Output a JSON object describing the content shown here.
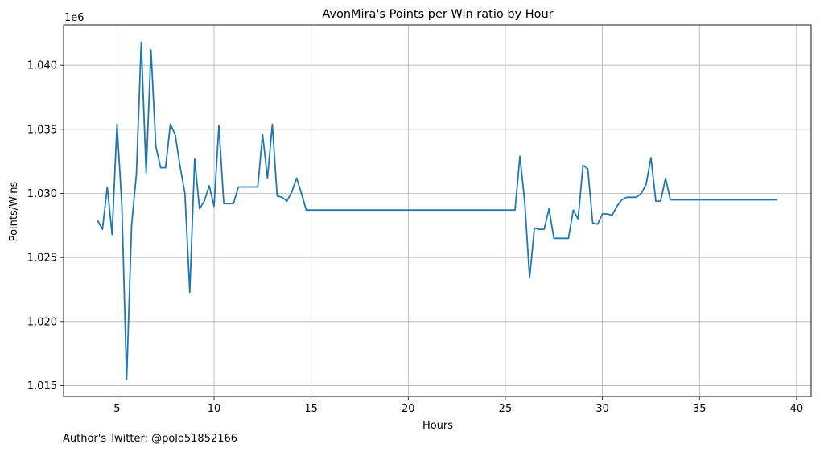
{
  "chart_data": {
    "type": "line",
    "title": "AvonMira's Points per Win ratio by Hour",
    "xlabel": "Hours",
    "ylabel": "Points/Wins",
    "y_offset_label": "1e6",
    "xlim": [
      2.25,
      40.75
    ],
    "ylim": [
      1.01415,
      1.04315
    ],
    "xticks": [
      5,
      10,
      15,
      20,
      25,
      30,
      35,
      40
    ],
    "xtick_labels": [
      "5",
      "10",
      "15",
      "20",
      "25",
      "30",
      "35",
      "40"
    ],
    "yticks": [
      1.015,
      1.02,
      1.025,
      1.03,
      1.035,
      1.04
    ],
    "ytick_labels": [
      "1.015",
      "1.020",
      "1.025",
      "1.030",
      "1.035",
      "1.040"
    ],
    "grid": true,
    "color": "#1f77b4",
    "series": [
      {
        "x": [
          4.0,
          4.25,
          4.5,
          4.75,
          5.0,
          5.25,
          5.5,
          5.75,
          6.0,
          6.25,
          6.5,
          6.75,
          7.0,
          7.25,
          7.5,
          7.75,
          8.0,
          8.25,
          8.5,
          8.75,
          9.0,
          9.25,
          9.5,
          9.75,
          10.0,
          10.25,
          10.5,
          10.75,
          11.0,
          11.25,
          11.5,
          11.75,
          12.0,
          12.25,
          12.5,
          12.75,
          13.0,
          13.25,
          13.5,
          13.75,
          14.0,
          14.25,
          14.5,
          14.75,
          25.5,
          25.75,
          26.0,
          26.25,
          26.5,
          26.75,
          27.0,
          27.25,
          27.5,
          27.75,
          28.0,
          28.25,
          28.5,
          28.75,
          29.0,
          29.25,
          29.5,
          29.75,
          30.0,
          30.25,
          30.5,
          30.75,
          31.0,
          31.25,
          31.5,
          31.75,
          32.0,
          32.25,
          32.5,
          32.75,
          33.0,
          33.25,
          33.5,
          39.0
        ],
        "y": [
          1.0279,
          1.0272,
          1.0305,
          1.0268,
          1.0354,
          1.0291,
          1.0155,
          1.0275,
          1.0315,
          1.0418,
          1.0316,
          1.0412,
          1.0337,
          1.032,
          1.032,
          1.0354,
          1.0346,
          1.0321,
          1.03,
          1.0223,
          1.0327,
          1.0288,
          1.0294,
          1.0306,
          1.029,
          1.0353,
          1.0292,
          1.0292,
          1.0292,
          1.0305,
          1.0305,
          1.0305,
          1.0305,
          1.0305,
          1.0346,
          1.0312,
          1.0354,
          1.0298,
          1.0297,
          1.0294,
          1.0301,
          1.0312,
          1.03,
          1.0287,
          1.0287,
          1.0329,
          1.0293,
          1.0234,
          1.0273,
          1.0272,
          1.0272,
          1.0288,
          1.0265,
          1.0265,
          1.0265,
          1.0265,
          1.0287,
          1.028,
          1.0322,
          1.0319,
          1.0277,
          1.0276,
          1.0284,
          1.0284,
          1.0283,
          1.029,
          1.0295,
          1.0297,
          1.0297,
          1.0297,
          1.03,
          1.0307,
          1.0328,
          1.0294,
          1.0294,
          1.0312,
          1.0295,
          1.0295
        ]
      }
    ]
  },
  "footer": "Author's Twitter: @polo51852166"
}
